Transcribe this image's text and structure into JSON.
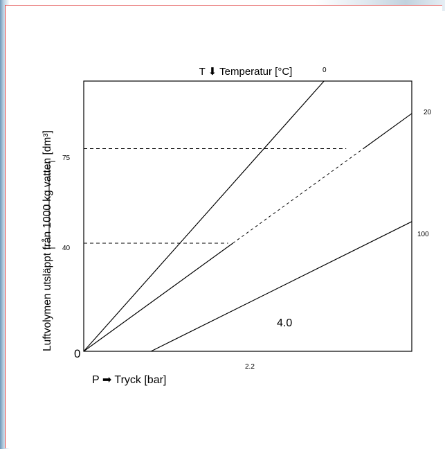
{
  "chart_data": {
    "type": "line",
    "title": "T ⬇ Temperatur [°C]",
    "xlabel": "P ➡ Tryck [bar]",
    "ylabel": "Luftvolymen utsläppt från 1000 kg vatten [dm³]",
    "xlim": [
      0,
      4.0
    ],
    "ylim": [
      0,
      100
    ],
    "origin_label": "0",
    "y_ticks": [
      "75",
      "40"
    ],
    "x_annotations": [
      "2.2",
      "4.0"
    ],
    "series": [
      {
        "name": "0",
        "x": [
          0,
          2.93
        ],
        "y": [
          0,
          100
        ]
      },
      {
        "name": "20",
        "x": [
          0,
          4.0
        ],
        "y": [
          0,
          88
        ]
      },
      {
        "name": "100",
        "x": [
          0.82,
          4.0
        ],
        "y": [
          0,
          48
        ]
      }
    ],
    "reference_lines": [
      {
        "y": 75,
        "x": [
          0,
          3.2
        ]
      },
      {
        "y": 40,
        "x": [
          0,
          1.76
        ]
      }
    ],
    "grid": false
  }
}
